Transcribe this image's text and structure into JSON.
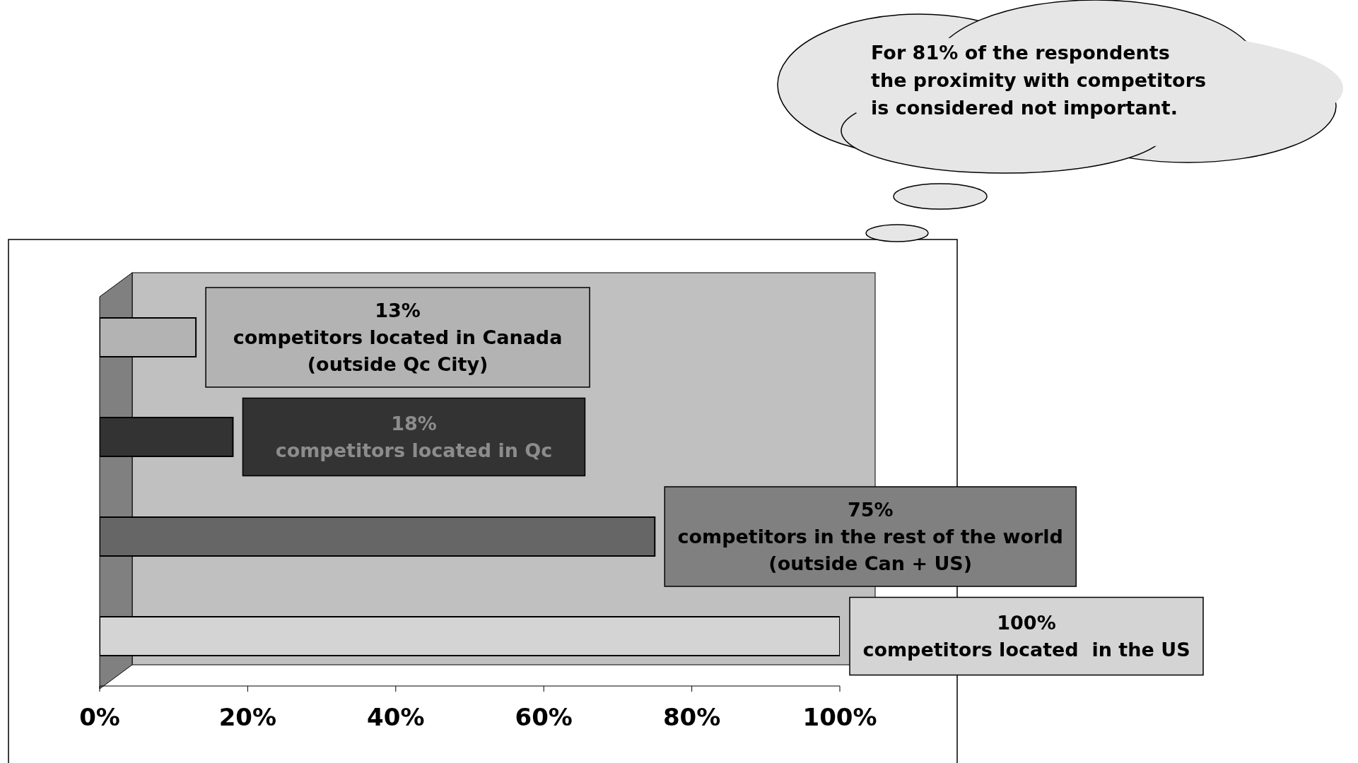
{
  "chart_data": {
    "type": "bar",
    "orientation": "horizontal",
    "categories": [
      null,
      null,
      null,
      null
    ],
    "values": [
      13,
      18,
      75,
      100
    ],
    "colors": [
      "#b3b3b3",
      "#333333",
      "#666666",
      "#d4d4d4"
    ],
    "value_labels": [
      "13%\ncompetitors located in Canada\n(outside Qc City)",
      "18%\ncompetitors located in Qc",
      "75%\ncompetitors in the rest of the world\n(outside Can + US)",
      "100%\ncompetitors located  in the US"
    ],
    "xlim": [
      0,
      100
    ],
    "xticks": [
      {
        "value": 0,
        "label": "0%"
      },
      {
        "value": 20,
        "label": "20%"
      },
      {
        "value": 40,
        "label": "40%"
      },
      {
        "value": 60,
        "label": "60%"
      },
      {
        "value": 80,
        "label": "80%"
      },
      {
        "value": 100,
        "label": "100%"
      }
    ],
    "tick_labels": "x",
    "grid": false,
    "legend": false,
    "annotations": [
      "For 81% of the respondents\nthe proximity with competitors\nis considered not important."
    ]
  }
}
